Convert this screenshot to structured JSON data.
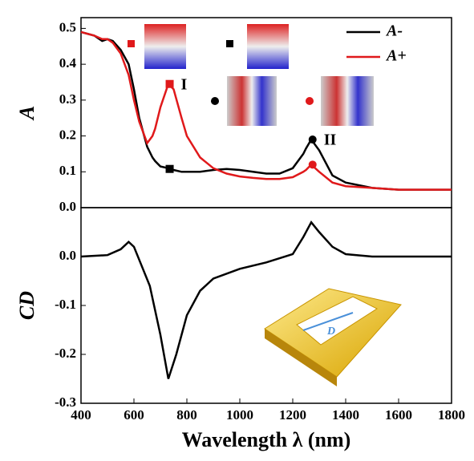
{
  "chart_data": [
    {
      "type": "line",
      "ylabel": "A",
      "xlim": [
        400,
        1800
      ],
      "ylim": [
        0,
        0.53
      ],
      "yticks": [
        {
          "value": 0,
          "label": "0.0"
        },
        0.1,
        0.2,
        0.3,
        0.4,
        0.5
      ],
      "x": [
        400,
        450,
        480,
        500,
        520,
        550,
        580,
        600,
        620,
        650,
        670,
        680,
        700,
        730,
        750,
        780,
        800,
        850,
        900,
        950,
        1000,
        1050,
        1100,
        1150,
        1200,
        1240,
        1250,
        1270,
        1300,
        1350,
        1400,
        1500,
        1600,
        1700,
        1800
      ],
      "series": [
        {
          "name": "A-",
          "color": "#000000",
          "values": [
            0.49,
            0.48,
            0.465,
            0.47,
            0.465,
            0.44,
            0.4,
            0.33,
            0.25,
            0.17,
            0.14,
            0.13,
            0.115,
            0.11,
            0.105,
            0.1,
            0.1,
            0.1,
            0.105,
            0.108,
            0.105,
            0.1,
            0.095,
            0.095,
            0.11,
            0.15,
            0.165,
            0.19,
            0.16,
            0.09,
            0.07,
            0.055,
            0.05,
            0.05,
            0.05
          ]
        },
        {
          "name": "A+",
          "color": "#e0191b",
          "values": [
            0.49,
            0.48,
            0.47,
            0.47,
            0.46,
            0.43,
            0.37,
            0.3,
            0.24,
            0.18,
            0.2,
            0.22,
            0.28,
            0.345,
            0.33,
            0.25,
            0.2,
            0.14,
            0.11,
            0.095,
            0.087,
            0.083,
            0.08,
            0.08,
            0.085,
            0.1,
            0.105,
            0.12,
            0.1,
            0.07,
            0.06,
            0.055,
            0.05,
            0.05,
            0.05
          ]
        }
      ],
      "points": [
        {
          "x": 735,
          "y": 0.345,
          "color": "#e0191b",
          "shape": "square",
          "label": "I"
        },
        {
          "x": 735,
          "y": 0.108,
          "color": "#000000",
          "shape": "square"
        },
        {
          "x": 1275,
          "y": 0.19,
          "color": "#000000",
          "shape": "circle",
          "label": "II"
        },
        {
          "x": 1275,
          "y": 0.12,
          "color": "#e0191b",
          "shape": "circle"
        }
      ]
    },
    {
      "type": "line",
      "ylabel": "CD",
      "xlabel": "Wavelength λ (nm)",
      "xlim": [
        400,
        1800
      ],
      "ylim": [
        -0.3,
        0.1
      ],
      "xticks": [
        400,
        600,
        800,
        1000,
        1200,
        1400,
        1600,
        1800
      ],
      "yticks": [
        {
          "value": 0,
          "label": "0.0"
        },
        -0.1,
        -0.2,
        -0.3
      ],
      "x": [
        400,
        500,
        550,
        580,
        600,
        630,
        660,
        700,
        730,
        760,
        800,
        850,
        900,
        1000,
        1100,
        1200,
        1240,
        1270,
        1300,
        1350,
        1400,
        1500,
        1800
      ],
      "series": [
        {
          "name": "CD",
          "color": "#000000",
          "values": [
            0,
            0.003,
            0.015,
            0.03,
            0.02,
            -0.02,
            -0.06,
            -0.16,
            -0.25,
            -0.2,
            -0.12,
            -0.07,
            -0.045,
            -0.025,
            -0.012,
            0.005,
            0.04,
            0.07,
            0.05,
            0.02,
            0.005,
            0,
            0
          ]
        }
      ],
      "annotation": "D"
    }
  ]
}
